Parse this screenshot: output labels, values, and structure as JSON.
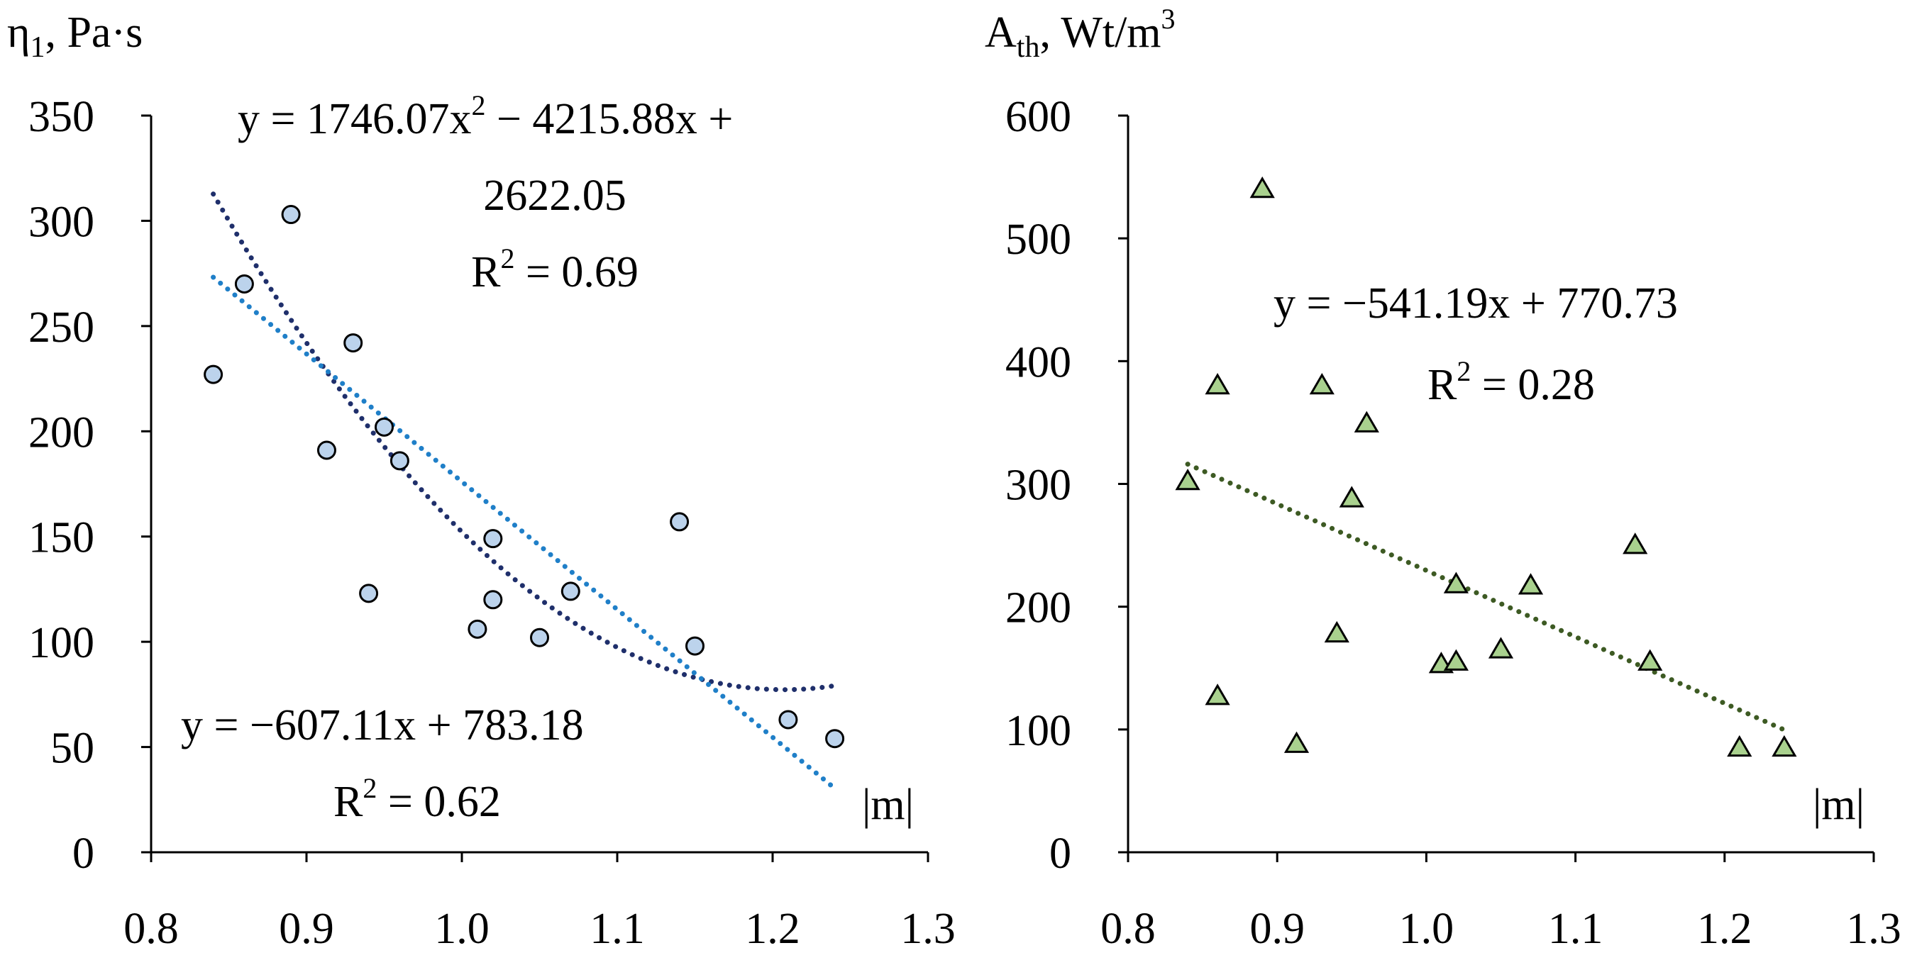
{
  "chart_data": [
    {
      "type": "scatter",
      "ylabel_main": "η",
      "ylabel_sub": "1",
      "ylabel_rest": ", Pa·s",
      "xlabel": "|m|",
      "xlim": [
        0.8,
        1.3
      ],
      "ylim": [
        0,
        350
      ],
      "xticks": [
        "0.8",
        "0.9",
        "1.0",
        "1.1",
        "1.2",
        "1.3"
      ],
      "yticks": [
        "0",
        "50",
        "100",
        "150",
        "200",
        "250",
        "300",
        "350"
      ],
      "series": [
        {
          "name": "eta1",
          "marker": "circle",
          "color": "#bcd3ec",
          "x": [
            0.84,
            0.86,
            0.89,
            0.913,
            0.93,
            0.94,
            0.95,
            0.96,
            1.01,
            1.02,
            1.02,
            1.05,
            1.07,
            1.14,
            1.15,
            1.21,
            1.24
          ],
          "y": [
            227,
            270,
            303,
            191,
            242,
            123,
            202,
            186,
            106,
            149,
            120,
            102,
            124,
            157,
            98,
            63,
            54
          ]
        }
      ],
      "trendlines": [
        {
          "kind": "quadratic",
          "coefficients": [
            1746.07,
            -4215.88,
            2622.05
          ],
          "x_range": [
            0.84,
            1.24
          ],
          "color": "#1f2f6b"
        },
        {
          "kind": "linear",
          "coefficients": [
            -607.11,
            783.18
          ],
          "x_range": [
            0.84,
            1.24
          ],
          "color": "#1f7fc8"
        }
      ],
      "annotations": {
        "quad_eq_line1_a": "y = 1746.07x",
        "quad_eq_line1_sup": "2",
        "quad_eq_line1_b": " − 4215.88x +",
        "quad_eq_line2": "2622.05",
        "quad_r2_a": "R",
        "quad_r2_sup": "2",
        "quad_r2_b": " = 0.69",
        "lin_eq": "y = −607.11x + 783.18",
        "lin_r2_a": "R",
        "lin_r2_sup": "2",
        "lin_r2_b": " = 0.62"
      }
    },
    {
      "type": "scatter",
      "ylabel_main": "A",
      "ylabel_sub": "th",
      "ylabel_rest": ", Wt/m",
      "ylabel_sup": "3",
      "xlabel": "|m|",
      "xlim": [
        0.8,
        1.3
      ],
      "ylim": [
        0,
        600
      ],
      "xticks": [
        "0.8",
        "0.9",
        "1.0",
        "1.1",
        "1.2",
        "1.3"
      ],
      "yticks": [
        "0",
        "100",
        "200",
        "300",
        "400",
        "500",
        "600"
      ],
      "series": [
        {
          "name": "Ath",
          "marker": "triangle",
          "color": "#a9d18e",
          "x": [
            0.84,
            0.86,
            0.86,
            0.89,
            0.913,
            0.93,
            0.94,
            0.95,
            0.96,
            1.01,
            1.02,
            1.02,
            1.05,
            1.07,
            1.14,
            1.15,
            1.21,
            1.24
          ],
          "y": [
            302,
            380,
            127,
            540,
            88,
            380,
            178,
            288,
            349,
            153,
            218,
            155,
            165,
            217,
            250,
            155,
            85,
            85
          ]
        }
      ],
      "trendlines": [
        {
          "kind": "linear",
          "coefficients": [
            -541.19,
            770.73
          ],
          "x_range": [
            0.84,
            1.24
          ],
          "color": "#3d5a23"
        }
      ],
      "annotations": {
        "lin_eq": "y = −541.19x + 770.73",
        "lin_r2_a": "R",
        "lin_r2_sup": "2",
        "lin_r2_b": " = 0.28"
      }
    }
  ]
}
